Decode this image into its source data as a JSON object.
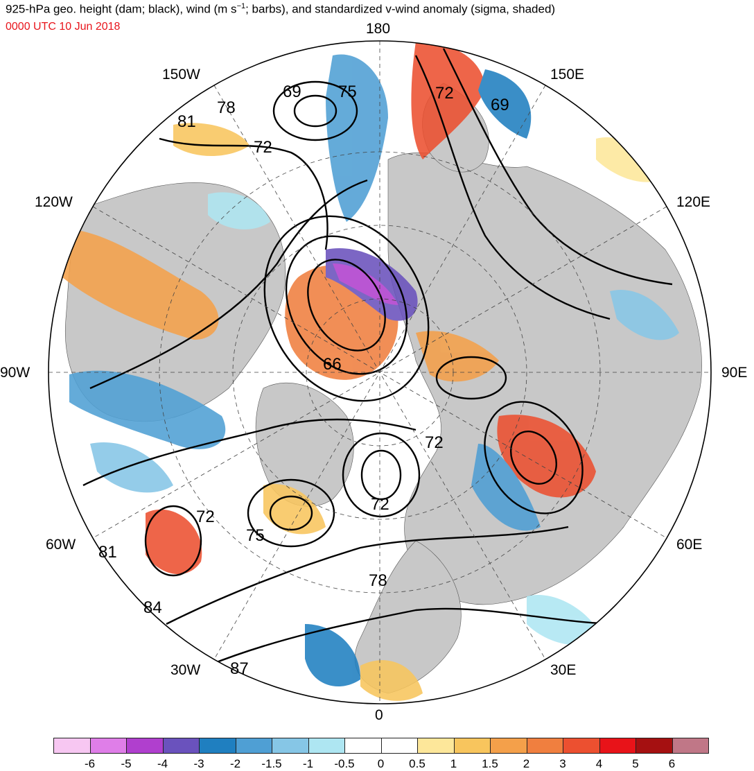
{
  "title": {
    "prefix": "925-hPa geo. height (dam; black), wind (m s",
    "sup": "−1",
    "suffix": "; barbs), and standardized v-wind anomaly (sigma, shaded)"
  },
  "date": {
    "text": "0000 UTC 10 Jun 2018",
    "color": "#e8141b"
  },
  "longitude_labels": [
    "180",
    "150E",
    "120E",
    "90E",
    "60E",
    "30E",
    "0",
    "30W",
    "60W",
    "90W",
    "120W",
    "150W"
  ],
  "contour_labels": [
    "75",
    "69",
    "78",
    "81",
    "72",
    "72",
    "69",
    "66",
    "72",
    "72",
    "72",
    "75",
    "81",
    "78",
    "84",
    "87"
  ],
  "colorbar": {
    "colors": [
      "#f7c7f2",
      "#df7ee8",
      "#b03fce",
      "#6a52bd",
      "#1f7fc0",
      "#4f9fd4",
      "#86c6e6",
      "#aee6f2",
      "#ffffff",
      "#ffffff",
      "#fde79a",
      "#f8c55d",
      "#f4a04a",
      "#f07f3f",
      "#ec5030",
      "#e81319",
      "#a51011",
      "#c07787"
    ],
    "labels": [
      "-6",
      "-5",
      "-4",
      "-3",
      "-2",
      "-1.5",
      "-1",
      "-0.5",
      "0",
      "0.5",
      "1",
      "1.5",
      "2",
      "3",
      "4",
      "5",
      "6"
    ]
  }
}
